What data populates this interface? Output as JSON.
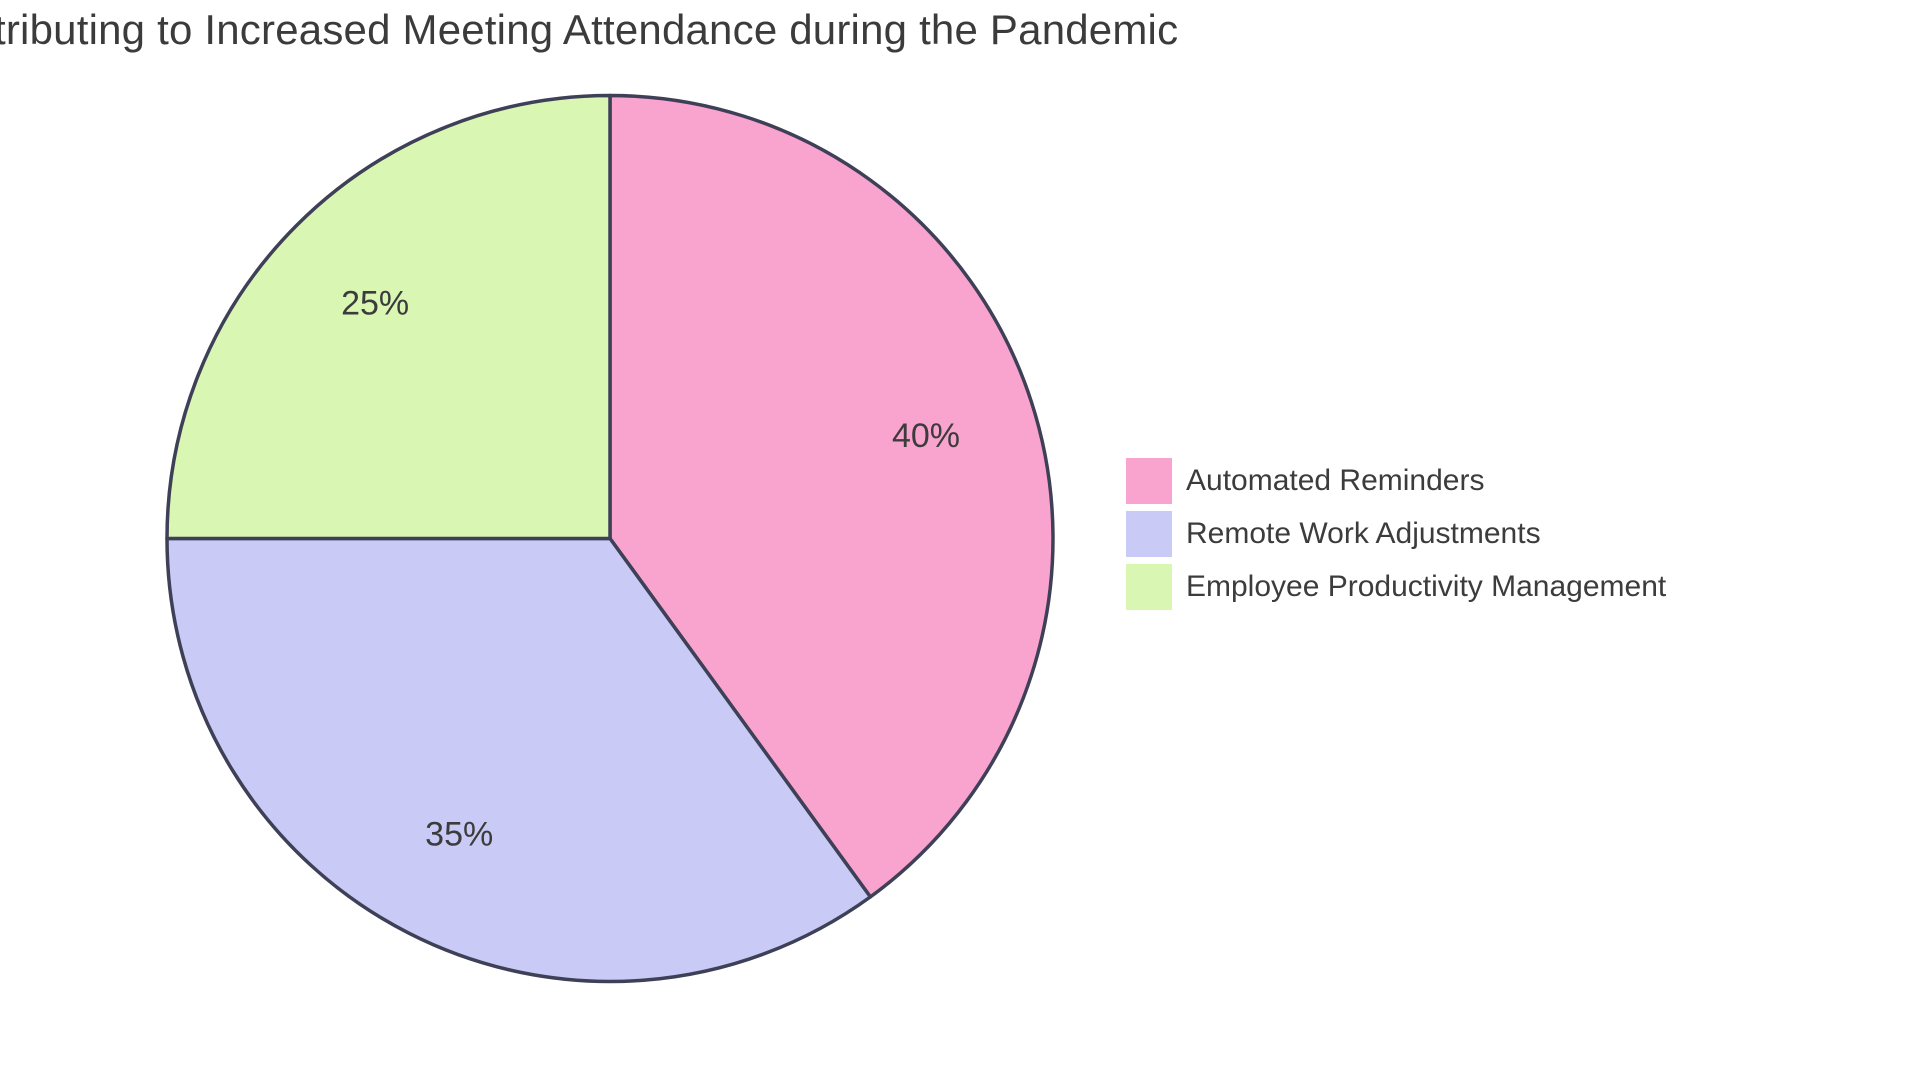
{
  "chart_data": {
    "type": "pie",
    "title": "tributing to Increased Meeting Attendance during the Pandemic",
    "slices": [
      {
        "label": "Automated Reminders",
        "value": 40,
        "display": "40%",
        "color": "#f9a4ce"
      },
      {
        "label": "Remote Work Adjustments",
        "value": 35,
        "display": "35%",
        "color": "#c9caf5"
      },
      {
        "label": "Employee Productivity Management",
        "value": 25,
        "display": "25%",
        "color": "#d9f6b3"
      }
    ],
    "start_angle": "top",
    "direction": "clockwise",
    "stroke_color": "#3e4057",
    "label_color": "#3c3c3c",
    "legend_position": "right",
    "grid": false
  }
}
